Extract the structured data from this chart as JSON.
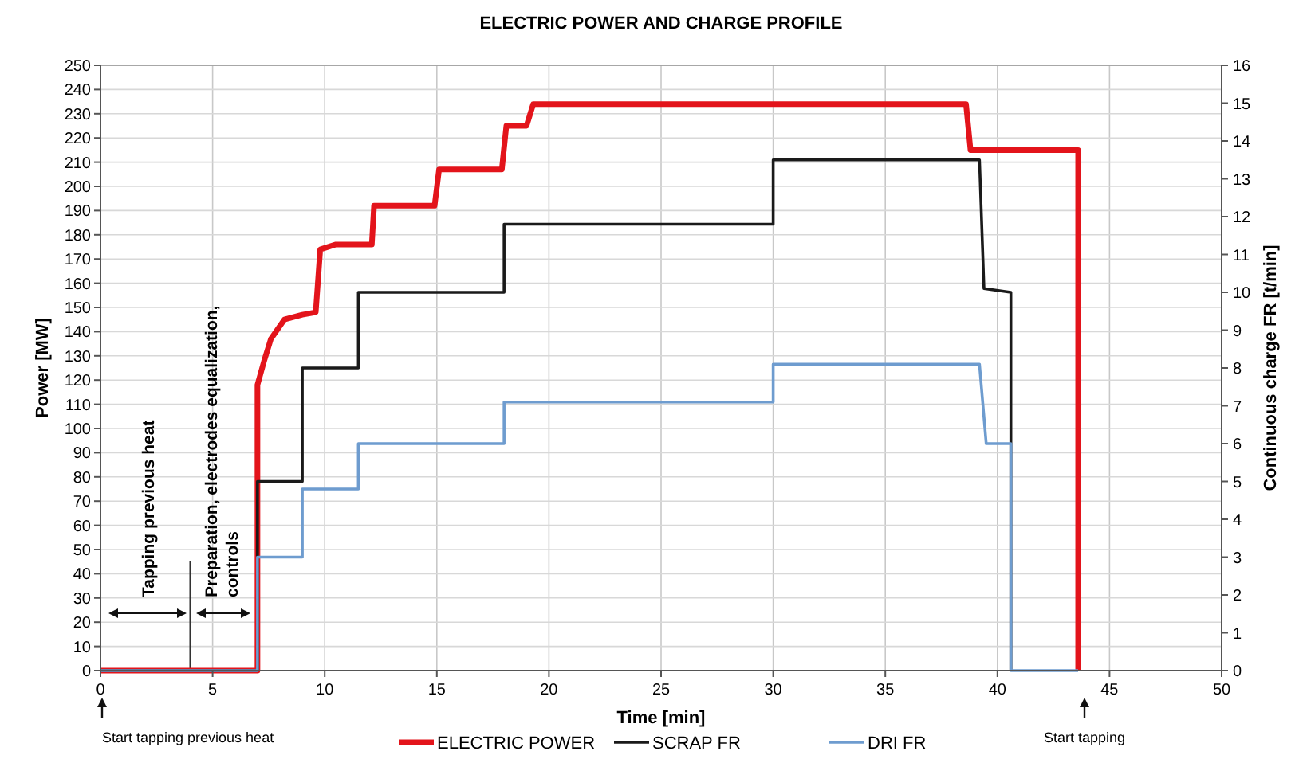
{
  "chart_data": {
    "type": "line",
    "title": "ELECTRIC POWER AND CHARGE PROFILE",
    "xlabel": "Time [min]",
    "ylabel": "Power [MW]",
    "y2label": "Continuous charge FR [t/min]",
    "xlim": [
      0,
      50
    ],
    "xticks": [
      0,
      5,
      10,
      15,
      20,
      25,
      30,
      35,
      40,
      45,
      50
    ],
    "ylim": [
      0,
      250
    ],
    "yticks": [
      0,
      10,
      20,
      30,
      40,
      50,
      60,
      70,
      80,
      90,
      100,
      110,
      120,
      130,
      140,
      150,
      160,
      170,
      180,
      190,
      200,
      210,
      220,
      230,
      240,
      250
    ],
    "y2lim": [
      0,
      16
    ],
    "y2ticks": [
      0,
      1,
      2,
      3,
      4,
      5,
      6,
      7,
      8,
      9,
      10,
      11,
      12,
      13,
      14,
      15,
      16
    ],
    "grid": true,
    "legend": "bottom",
    "line_style": "solid",
    "series": [
      {
        "name": "ELECTRIC POWER",
        "color": "#e3141b",
        "x": [
          0,
          7,
          7,
          7.3,
          7.6,
          8.2,
          9,
          9.6,
          9.8,
          10.5,
          12.1,
          12.2,
          14.9,
          15.1,
          17.9,
          18.1,
          19,
          19.3,
          38.6,
          38.8,
          43.6,
          43.6
        ],
        "values": [
          0,
          0,
          118,
          128,
          137,
          145,
          147,
          148,
          174,
          176,
          176,
          192,
          192,
          207,
          207,
          225,
          225,
          234,
          234,
          215,
          215,
          0
        ]
      },
      {
        "name": "SCRAP FR",
        "color": "#1a1a1a",
        "axis": "y2",
        "x": [
          0,
          7,
          7,
          9,
          9,
          11.5,
          11.5,
          18,
          18,
          30,
          30,
          39.2,
          39.4,
          40.6,
          40.6
        ],
        "values": [
          0,
          0,
          5,
          5,
          8,
          8,
          10,
          10,
          11.8,
          11.8,
          13.5,
          13.5,
          10.1,
          10,
          0
        ]
      },
      {
        "name": "DRI FR",
        "color": "#6e9ccf",
        "axis": "y2",
        "x": [
          0,
          7,
          7,
          9,
          9,
          11.5,
          11.5,
          18,
          18,
          30,
          30,
          39.2,
          39.5,
          40.6,
          40.6,
          43.6
        ],
        "values": [
          0,
          0,
          3,
          3,
          4.8,
          4.8,
          6,
          6,
          7.1,
          7.1,
          8.1,
          8.1,
          6,
          6,
          0,
          0
        ]
      }
    ],
    "ref_lines": [
      {
        "axis": "x",
        "value": 4,
        "color": "#333333"
      }
    ],
    "annotations": [
      "Tapping previous heat",
      "Preparation, electrodes equalization, controls",
      "Start tapping previous heat",
      "Start tapping"
    ]
  }
}
